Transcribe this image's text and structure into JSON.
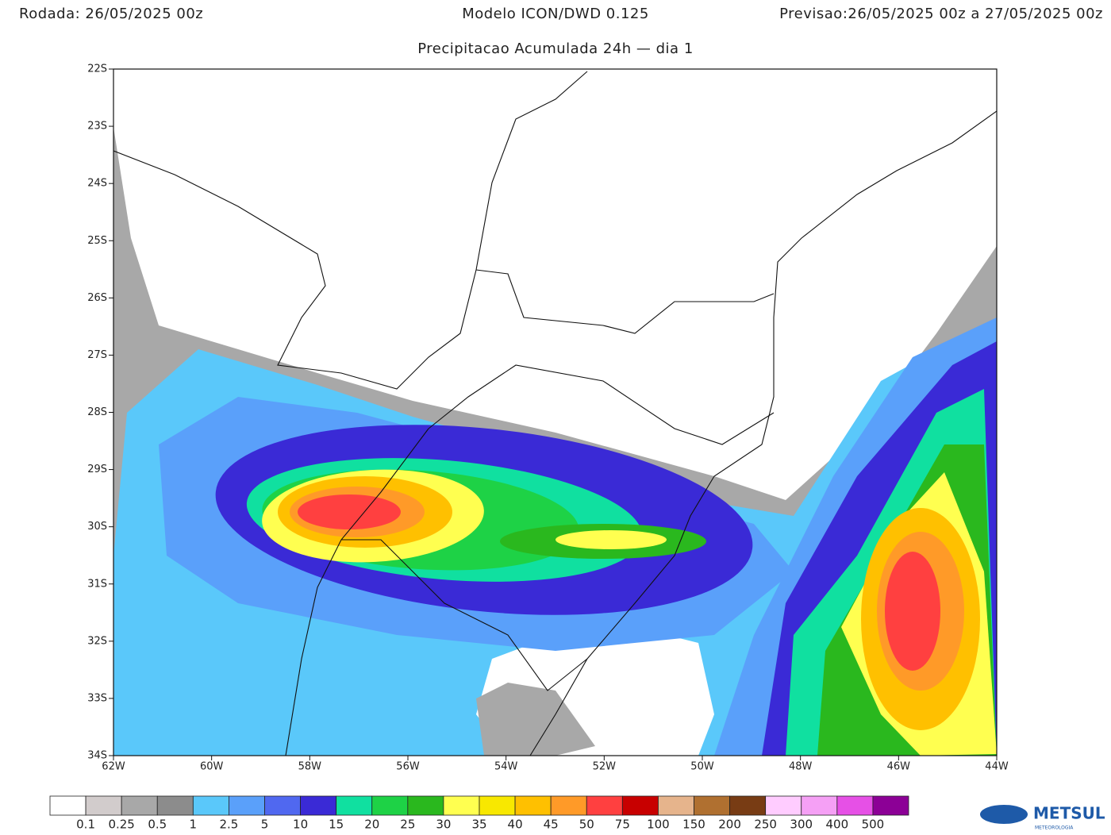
{
  "header": {
    "run": "Rodada: 26/05/2025 00z",
    "model": "Modelo ICON/DWD 0.125",
    "forecast": "Previsao:26/05/2025 00z a 27/05/2025 00z",
    "subtitle": "Precipitacao Acumulada 24h — dia 1"
  },
  "map": {
    "lat_labels": [
      "22S",
      "23S",
      "24S",
      "25S",
      "26S",
      "27S",
      "28S",
      "29S",
      "30S",
      "31S",
      "32S",
      "33S",
      "34S"
    ],
    "lon_labels": [
      "62W",
      "60W",
      "58W",
      "56W",
      "54W",
      "52W",
      "50W",
      "48W",
      "46W",
      "44W"
    ]
  },
  "colorbar": {
    "colors": [
      "#ffffff",
      "#d2cccc",
      "#a8a8a8",
      "#8c8c8c",
      "#5ac8fa",
      "#5aa0fa",
      "#5068f0",
      "#3a2ad6",
      "#10e0a0",
      "#1ed246",
      "#2ab81e",
      "#ffff50",
      "#f8e800",
      "#ffc000",
      "#ff9a28",
      "#ff4040",
      "#c80000",
      "#e6b48c",
      "#b07030",
      "#783c14",
      "#ffccff",
      "#f5a0f5",
      "#e650e6",
      "#8c0096"
    ],
    "labels": [
      "0.1",
      "0.25",
      "0.5",
      "1",
      "2.5",
      "5",
      "10",
      "15",
      "20",
      "25",
      "30",
      "35",
      "40",
      "45",
      "50",
      "75",
      "100",
      "150",
      "200",
      "250",
      "300",
      "400",
      "500"
    ]
  },
  "logo": {
    "name": "METSUL",
    "tagline": "METEOROLOGIA"
  }
}
